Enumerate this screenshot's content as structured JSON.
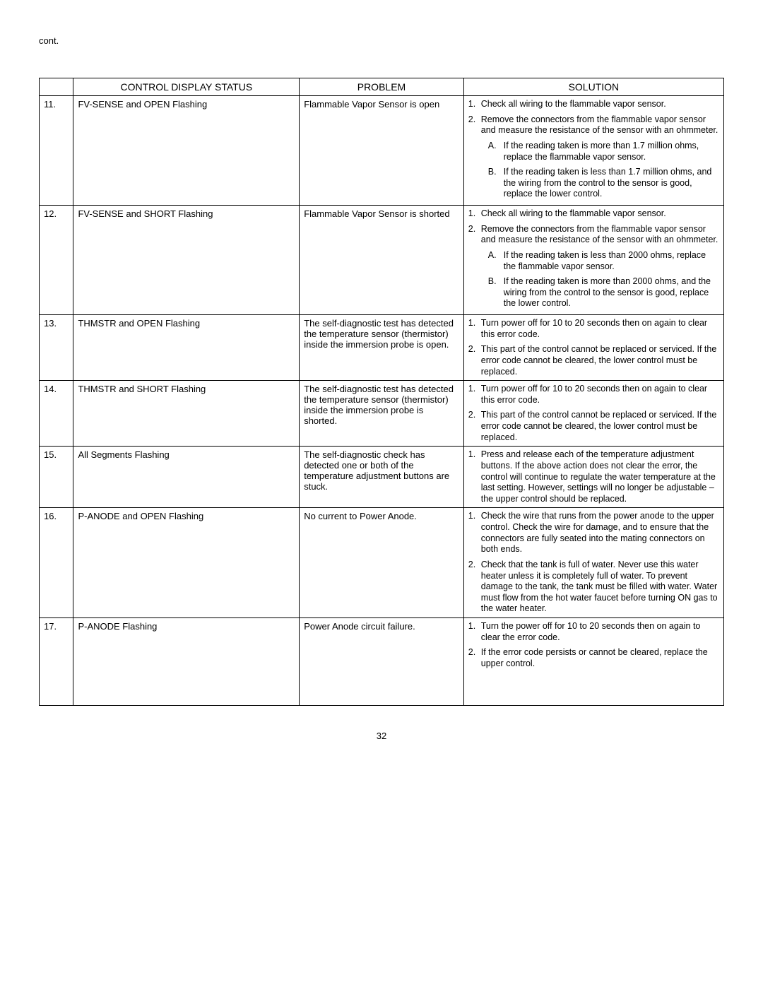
{
  "header_cont": "cont.",
  "columns": {
    "status": "CONTROL DISPLAY STATUS",
    "problem": "PROBLEM",
    "solution": "SOLUTION"
  },
  "rows": [
    {
      "num": "11.",
      "status": "FV-SENSE  and  OPEN  Flashing",
      "problem": "Flammable Vapor Sensor is open",
      "solutions": [
        {
          "n": "1.",
          "text": "Check all wiring to the flammable vapor sensor."
        },
        {
          "n": "2.",
          "text": "Remove the connectors from the flammable vapor sensor and measure the resistance of the sensor with an ohmmeter.",
          "subs": [
            {
              "l": "A.",
              "text": "If the reading taken is more than 1.7 million ohms, replace the flammable vapor sensor."
            },
            {
              "l": "B.",
              "text": "If the reading taken is less than 1.7 million ohms, and the wiring from the control to the sensor is good, replace the lower control."
            }
          ]
        }
      ]
    },
    {
      "num": "12.",
      "status": "FV-SENSE  and  SHORT  Flashing",
      "problem": "Flammable Vapor Sensor is shorted",
      "solutions": [
        {
          "n": "1.",
          "text": "Check all wiring to the flammable vapor sensor."
        },
        {
          "n": "2.",
          "text": "Remove the connectors from the flammable vapor sensor and measure the resistance of the sensor with an ohmmeter.",
          "subs": [
            {
              "l": "A.",
              "text": "If the reading taken is less than 2000 ohms, replace the flammable vapor sensor."
            },
            {
              "l": "B.",
              "text": "If the reading taken is more than 2000 ohms, and the wiring from the control to the sensor is good, replace the lower control."
            }
          ]
        }
      ]
    },
    {
      "num": "13.",
      "status": "THMSTR  and  OPEN  Flashing",
      "problem": "The self-diagnostic test has detected the temperature sensor (thermistor) inside the immersion probe is open.",
      "solutions": [
        {
          "n": "1.",
          "text": "Turn power off for 10 to 20 seconds then on again to clear this error code."
        },
        {
          "n": "2.",
          "text": "This part of the control cannot be replaced or serviced.  If the error code cannot be cleared, the lower control must be replaced."
        }
      ]
    },
    {
      "num": "14.",
      "status": "THMSTR  and  SHORT  Flashing",
      "problem": "The self-diagnostic test has detected the temperature sensor (thermistor) inside the immersion probe is shorted.",
      "solutions": [
        {
          "n": "1.",
          "text": "Turn power off for 10 to 20 seconds then on again to clear this error code."
        },
        {
          "n": "2.",
          "text": "This part of the control cannot be replaced or serviced.  If the error code cannot be cleared, the lower control must be replaced."
        }
      ]
    },
    {
      "num": "15.",
      "status": "All Segments Flashing",
      "problem": "The self-diagnostic check has detected one or both of the temperature adjustment buttons are stuck.",
      "solutions": [
        {
          "n": "1.",
          "text": "Press and release each of the temperature adjustment buttons.  If the above action does not clear the error, the control will continue to regulate the water temperature at the last setting.  However, settings will no longer be adjustable – the upper control should be replaced."
        }
      ]
    },
    {
      "num": "16.",
      "status": "P-ANODE  and  OPEN  Flashing",
      "problem": "No current to Power Anode.",
      "solutions": [
        {
          "n": "1.",
          "text": "Check the wire that runs from the power anode to the upper control.  Check the wire for damage, and to ensure that the connectors are fully seated into the mating connectors on both ends."
        },
        {
          "n": "2.",
          "text": "Check that the tank is full of water.  Never use this water heater unless it is completely full of water.  To prevent damage to the tank, the tank must be filled with water.  Water must flow from the hot water faucet before turning  ON  gas to the water heater."
        }
      ]
    },
    {
      "num": "17.",
      "status": "P-ANODE  Flashing",
      "problem": "Power Anode circuit failure.",
      "solutions": [
        {
          "n": "1.",
          "text": "Turn the power off for 10 to 20 seconds then on again to clear the error code."
        },
        {
          "n": "2.",
          "text": "If the error code persists or cannot be cleared, replace the upper control."
        }
      ],
      "extraPad": true
    }
  ],
  "page_number": "32"
}
